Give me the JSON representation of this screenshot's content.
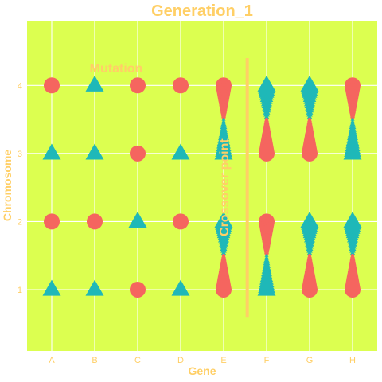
{
  "chart_data": {
    "type": "scatter",
    "title": "Generation_1",
    "xlabel": "Gene",
    "ylabel": "Chromosome",
    "x_categories": [
      "A",
      "B",
      "C",
      "D",
      "E",
      "F",
      "G",
      "H"
    ],
    "y_ticks": [
      1,
      2,
      3,
      4
    ],
    "ylim": [
      0.1,
      4.95
    ],
    "grid": true,
    "legend": "none",
    "colors": {
      "background": "#dcff50",
      "grid": "#ffffff",
      "text": "#ffcf66",
      "circle": "#f5655f",
      "triangle": "#1fb8b8",
      "crossover_line": "#ffcf66"
    },
    "points": [
      {
        "gene": "A",
        "chromosome": 4,
        "shape": "circle"
      },
      {
        "gene": "B",
        "chromosome": 4,
        "shape": "triangle"
      },
      {
        "gene": "C",
        "chromosome": 4,
        "shape": "circle"
      },
      {
        "gene": "D",
        "chromosome": 4,
        "shape": "circle"
      },
      {
        "gene": "A",
        "chromosome": 3,
        "shape": "triangle"
      },
      {
        "gene": "B",
        "chromosome": 3,
        "shape": "triangle"
      },
      {
        "gene": "C",
        "chromosome": 3,
        "shape": "circle"
      },
      {
        "gene": "D",
        "chromosome": 3,
        "shape": "triangle"
      },
      {
        "gene": "A",
        "chromosome": 2,
        "shape": "circle"
      },
      {
        "gene": "B",
        "chromosome": 2,
        "shape": "circle"
      },
      {
        "gene": "C",
        "chromosome": 2,
        "shape": "triangle"
      },
      {
        "gene": "D",
        "chromosome": 2,
        "shape": "circle"
      },
      {
        "gene": "A",
        "chromosome": 1,
        "shape": "triangle"
      },
      {
        "gene": "B",
        "chromosome": 1,
        "shape": "triangle"
      },
      {
        "gene": "C",
        "chromosome": 1,
        "shape": "circle"
      },
      {
        "gene": "D",
        "chromosome": 1,
        "shape": "triangle"
      }
    ],
    "connections": [
      {
        "gene": "E",
        "from": 4,
        "to": 3,
        "from_shape": "circle",
        "to_shape": "triangle"
      },
      {
        "gene": "F",
        "from": 4,
        "to": 3,
        "from_shape": "triangle",
        "to_shape": "circle"
      },
      {
        "gene": "G",
        "from": 4,
        "to": 3,
        "from_shape": "triangle",
        "to_shape": "circle"
      },
      {
        "gene": "H",
        "from": 4,
        "to": 3,
        "from_shape": "circle",
        "to_shape": "triangle"
      },
      {
        "gene": "E",
        "from": 2,
        "to": 1,
        "from_shape": "triangle",
        "to_shape": "circle"
      },
      {
        "gene": "F",
        "from": 2,
        "to": 1,
        "from_shape": "circle",
        "to_shape": "triangle"
      },
      {
        "gene": "G",
        "from": 2,
        "to": 1,
        "from_shape": "triangle",
        "to_shape": "circle"
      },
      {
        "gene": "H",
        "from": 2,
        "to": 1,
        "from_shape": "triangle",
        "to_shape": "circle"
      }
    ],
    "annotations": [
      {
        "text": "Mutation",
        "x": 1.5,
        "y": 4.25
      },
      {
        "text": "Crossover point",
        "x": 4.0,
        "y": 2.5,
        "rotation": -90
      }
    ],
    "crossover_line": {
      "x": 4.55,
      "y_from": 0.6,
      "y_to": 4.4
    }
  }
}
